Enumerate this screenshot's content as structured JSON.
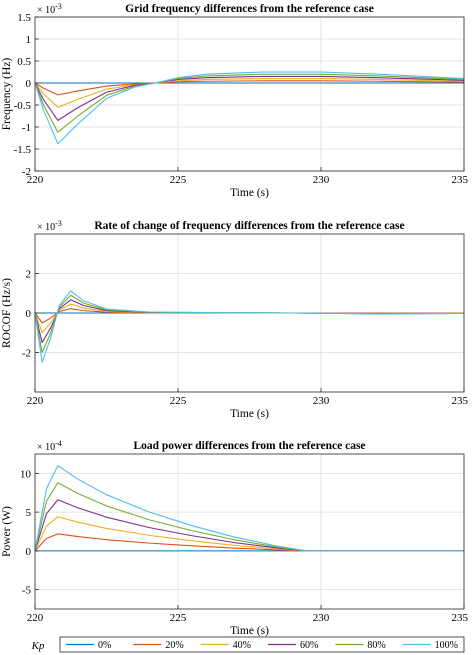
{
  "chart_data": [
    {
      "type": "line",
      "title": "Grid frequency differences from the reference case",
      "xlabel": "Time (s)",
      "ylabel": "Frequency (Hz)",
      "exponent_label": "× 10-3",
      "xlim": [
        220,
        235
      ],
      "ylim": [
        -2,
        1.5
      ],
      "xticks": [
        "220",
        "225",
        "230",
        "235"
      ],
      "yticks": [
        "1.5",
        "1",
        "0.5",
        "0",
        "-0.5",
        "-1",
        "-1.5",
        "-2"
      ],
      "grid": true,
      "series": [
        {
          "name": "0%",
          "color": "#0072BD",
          "values": [
            [
              220,
              0
            ],
            [
              235,
              0
            ]
          ]
        },
        {
          "name": "20%",
          "color": "#D95319",
          "values": [
            [
              220,
              0
            ],
            [
              220.3,
              -0.12
            ],
            [
              220.8,
              -0.27
            ],
            [
              221.5,
              -0.18
            ],
            [
              222.5,
              -0.07
            ],
            [
              223.5,
              -0.02
            ],
            [
              224.2,
              0
            ],
            [
              225,
              0.03
            ],
            [
              226,
              0.04
            ],
            [
              228,
              0.05
            ],
            [
              230,
              0.05
            ],
            [
              232,
              0.04
            ],
            [
              235,
              0.02
            ]
          ]
        },
        {
          "name": "40%",
          "color": "#EDB120",
          "values": [
            [
              220,
              0
            ],
            [
              220.3,
              -0.25
            ],
            [
              220.8,
              -0.55
            ],
            [
              221.5,
              -0.37
            ],
            [
              222.5,
              -0.14
            ],
            [
              223.5,
              -0.04
            ],
            [
              224.2,
              0
            ],
            [
              225,
              0.05
            ],
            [
              226,
              0.08
            ],
            [
              228,
              0.1
            ],
            [
              230,
              0.1
            ],
            [
              232,
              0.08
            ],
            [
              235,
              0.04
            ]
          ]
        },
        {
          "name": "60%",
          "color": "#7E2F8E",
          "values": [
            [
              220,
              0
            ],
            [
              220.3,
              -0.38
            ],
            [
              220.8,
              -0.85
            ],
            [
              221.5,
              -0.56
            ],
            [
              222.5,
              -0.21
            ],
            [
              223.5,
              -0.05
            ],
            [
              224.2,
              0
            ],
            [
              225,
              0.08
            ],
            [
              226,
              0.12
            ],
            [
              228,
              0.15
            ],
            [
              230,
              0.15
            ],
            [
              232,
              0.12
            ],
            [
              235,
              0.06
            ]
          ]
        },
        {
          "name": "80%",
          "color": "#77AC30",
          "values": [
            [
              220,
              0
            ],
            [
              220.3,
              -0.5
            ],
            [
              220.8,
              -1.12
            ],
            [
              221.5,
              -0.75
            ],
            [
              222.5,
              -0.28
            ],
            [
              223.5,
              -0.07
            ],
            [
              224.2,
              0
            ],
            [
              225,
              0.1
            ],
            [
              226,
              0.16
            ],
            [
              228,
              0.2
            ],
            [
              230,
              0.2
            ],
            [
              232,
              0.16
            ],
            [
              235,
              0.08
            ]
          ]
        },
        {
          "name": "100%",
          "color": "#4DBEEE",
          "values": [
            [
              220,
              0
            ],
            [
              220.3,
              -0.62
            ],
            [
              220.8,
              -1.38
            ],
            [
              221.5,
              -0.93
            ],
            [
              222.5,
              -0.35
            ],
            [
              223.5,
              -0.09
            ],
            [
              224.2,
              0
            ],
            [
              225,
              0.12
            ],
            [
              226,
              0.2
            ],
            [
              228,
              0.25
            ],
            [
              230,
              0.25
            ],
            [
              232,
              0.2
            ],
            [
              235,
              0.1
            ]
          ]
        }
      ]
    },
    {
      "type": "line",
      "title": "Rate of change of frequency differences from the reference case",
      "xlabel": "Time (s)",
      "ylabel": "ROCOF (Hz/s)",
      "exponent_label": "× 10-3",
      "xlim": [
        220,
        235
      ],
      "ylim": [
        -4,
        4
      ],
      "xticks": [
        "220",
        "225",
        "230",
        "235"
      ],
      "yticks": [
        "2",
        "0",
        "-2"
      ],
      "grid": true,
      "series": [
        {
          "name": "0%",
          "color": "#0072BD",
          "values": [
            [
              220,
              0
            ],
            [
              235,
              0
            ]
          ]
        },
        {
          "name": "20%",
          "color": "#D95319",
          "values": [
            [
              220,
              0
            ],
            [
              220.25,
              -0.5
            ],
            [
              220.55,
              -0.25
            ],
            [
              220.85,
              0.08
            ],
            [
              221.25,
              0.22
            ],
            [
              221.7,
              0.12
            ],
            [
              222.5,
              0.04
            ],
            [
              224,
              0.01
            ],
            [
              226,
              0.005
            ],
            [
              229,
              0
            ],
            [
              232,
              -0.01
            ],
            [
              235,
              -0.005
            ]
          ]
        },
        {
          "name": "40%",
          "color": "#EDB120",
          "values": [
            [
              220,
              0
            ],
            [
              220.25,
              -1
            ],
            [
              220.55,
              -0.5
            ],
            [
              220.85,
              0.15
            ],
            [
              221.25,
              0.45
            ],
            [
              221.7,
              0.25
            ],
            [
              222.5,
              0.08
            ],
            [
              224,
              0.02
            ],
            [
              226,
              0.01
            ],
            [
              229,
              0
            ],
            [
              232,
              -0.02
            ],
            [
              235,
              -0.01
            ]
          ]
        },
        {
          "name": "60%",
          "color": "#7E2F8E",
          "values": [
            [
              220,
              0
            ],
            [
              220.25,
              -1.5
            ],
            [
              220.55,
              -0.75
            ],
            [
              220.85,
              0.22
            ],
            [
              221.25,
              0.67
            ],
            [
              221.7,
              0.38
            ],
            [
              222.5,
              0.12
            ],
            [
              224,
              0.03
            ],
            [
              226,
              0.015
            ],
            [
              229,
              0
            ],
            [
              232,
              -0.03
            ],
            [
              235,
              -0.015
            ]
          ]
        },
        {
          "name": "80%",
          "color": "#77AC30",
          "values": [
            [
              220,
              0
            ],
            [
              220.25,
              -2
            ],
            [
              220.55,
              -1
            ],
            [
              220.85,
              0.3
            ],
            [
              221.25,
              0.9
            ],
            [
              221.7,
              0.5
            ],
            [
              222.5,
              0.16
            ],
            [
              224,
              0.04
            ],
            [
              226,
              0.02
            ],
            [
              229,
              0
            ],
            [
              232,
              -0.04
            ],
            [
              235,
              -0.02
            ]
          ]
        },
        {
          "name": "100%",
          "color": "#4DBEEE",
          "values": [
            [
              220,
              0
            ],
            [
              220.25,
              -2.5
            ],
            [
              220.55,
              -1.25
            ],
            [
              220.85,
              0.38
            ],
            [
              221.25,
              1.12
            ],
            [
              221.7,
              0.62
            ],
            [
              222.5,
              0.2
            ],
            [
              224,
              0.05
            ],
            [
              226,
              0.025
            ],
            [
              229,
              0
            ],
            [
              232,
              -0.05
            ],
            [
              235,
              -0.025
            ]
          ]
        }
      ]
    },
    {
      "type": "line",
      "title": "Load power differences from the reference case",
      "xlabel": "Time (s)",
      "ylabel": "Power (W)",
      "exponent_label": "× 10-4",
      "xlim": [
        220,
        235
      ],
      "ylim": [
        -7.5,
        12.5
      ],
      "xticks": [
        "220",
        "225",
        "230",
        "235"
      ],
      "yticks": [
        "10",
        "5",
        "0",
        "-5"
      ],
      "grid": true,
      "series": [
        {
          "name": "0%",
          "color": "#0072BD",
          "values": [
            [
              220,
              0
            ],
            [
              235,
              0
            ]
          ]
        },
        {
          "name": "20%",
          "color": "#D95319",
          "values": [
            [
              220,
              0
            ],
            [
              220.4,
              1.6
            ],
            [
              220.8,
              2.2
            ],
            [
              221.5,
              1.85
            ],
            [
              222.5,
              1.45
            ],
            [
              224,
              1
            ],
            [
              225.5,
              0.65
            ],
            [
              227,
              0.35
            ],
            [
              228.5,
              0.12
            ],
            [
              229.5,
              0
            ],
            [
              235,
              0
            ]
          ]
        },
        {
          "name": "40%",
          "color": "#EDB120",
          "values": [
            [
              220,
              0
            ],
            [
              220.4,
              3.2
            ],
            [
              220.8,
              4.4
            ],
            [
              221.5,
              3.7
            ],
            [
              222.5,
              2.9
            ],
            [
              224,
              2
            ],
            [
              225.5,
              1.3
            ],
            [
              227,
              0.7
            ],
            [
              228.5,
              0.24
            ],
            [
              229.5,
              0
            ],
            [
              235,
              0
            ]
          ]
        },
        {
          "name": "60%",
          "color": "#7E2F8E",
          "values": [
            [
              220,
              0
            ],
            [
              220.4,
              4.8
            ],
            [
              220.8,
              6.6
            ],
            [
              221.5,
              5.55
            ],
            [
              222.5,
              4.35
            ],
            [
              224,
              3
            ],
            [
              225.5,
              1.95
            ],
            [
              227,
              1.05
            ],
            [
              228.5,
              0.36
            ],
            [
              229.5,
              0
            ],
            [
              235,
              0
            ]
          ]
        },
        {
          "name": "80%",
          "color": "#77AC30",
          "values": [
            [
              220,
              0
            ],
            [
              220.4,
              6.4
            ],
            [
              220.8,
              8.8
            ],
            [
              221.5,
              7.4
            ],
            [
              222.5,
              5.8
            ],
            [
              224,
              4
            ],
            [
              225.5,
              2.6
            ],
            [
              227,
              1.4
            ],
            [
              228.5,
              0.48
            ],
            [
              229.5,
              0
            ],
            [
              235,
              0
            ]
          ]
        },
        {
          "name": "100%",
          "color": "#4DBEEE",
          "values": [
            [
              220,
              0
            ],
            [
              220.4,
              8
            ],
            [
              220.8,
              11
            ],
            [
              221.5,
              9.25
            ],
            [
              222.5,
              7.25
            ],
            [
              224,
              5
            ],
            [
              225.5,
              3.25
            ],
            [
              227,
              1.75
            ],
            [
              228.5,
              0.6
            ],
            [
              229.5,
              0
            ],
            [
              235,
              0
            ]
          ]
        }
      ]
    }
  ],
  "legend": {
    "title": "Kp",
    "entries": [
      "0%",
      "20%",
      "40%",
      "60%",
      "80%",
      "100%"
    ]
  }
}
